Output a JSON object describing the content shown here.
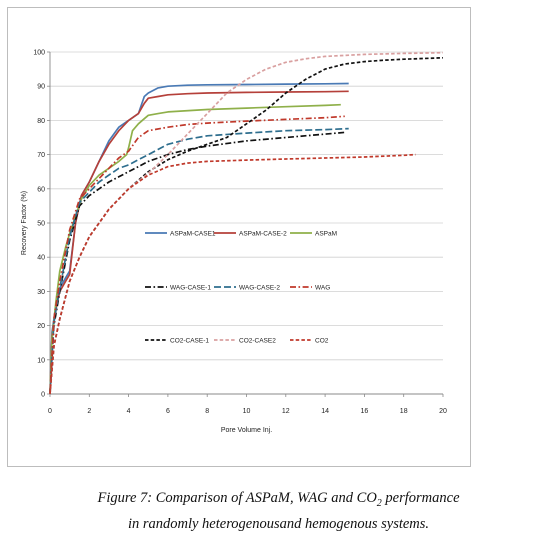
{
  "caption": {
    "prefix": "Figure 7: Comparison of ASPaM, WAG and CO",
    "sub": "2",
    "suffix": " performance",
    "line2": "in randomly heterogenousand hemogenous systems."
  },
  "chart_data": {
    "type": "line",
    "title": "",
    "xlabel": "Pore Volume Inj.",
    "ylabel": "Recovery Factor (%)",
    "xlim": [
      0,
      20
    ],
    "ylim": [
      0,
      100
    ],
    "xticks": [
      0,
      2,
      4,
      6,
      8,
      10,
      12,
      14,
      16,
      18,
      20
    ],
    "yticks": [
      0,
      10,
      20,
      30,
      40,
      50,
      60,
      70,
      80,
      90,
      100
    ],
    "grid": "horizontal",
    "series": [
      {
        "name": "ASPaM-CASE1",
        "color": "#4a7ab5",
        "dash": "solid",
        "x": [
          0,
          0.1,
          0.3,
          0.5,
          0.8,
          1.0,
          1.3,
          1.6,
          2.0,
          2.5,
          3.0,
          3.5,
          4.0,
          4.5,
          4.8,
          5.0,
          5.5,
          6.0,
          7.0,
          8.0,
          10.0,
          12.0,
          14.0,
          15.2
        ],
        "y": [
          0,
          18,
          26,
          31,
          34,
          36,
          50,
          58,
          62,
          68,
          74,
          78,
          80,
          82,
          87,
          88,
          89.5,
          90,
          90.3,
          90.4,
          90.5,
          90.6,
          90.7,
          90.8
        ]
      },
      {
        "name": "ASPaM-CASE-2",
        "color": "#b5403a",
        "dash": "solid",
        "x": [
          0,
          0.1,
          0.3,
          0.5,
          0.8,
          1.0,
          1.3,
          1.6,
          2.0,
          2.5,
          3.0,
          3.5,
          4.0,
          4.5,
          4.8,
          5.0,
          5.5,
          6.0,
          7.0,
          8.0,
          10.0,
          12.0,
          14.0,
          15.2
        ],
        "y": [
          0,
          17,
          25,
          30,
          33,
          35,
          50,
          58,
          62,
          68,
          73,
          77,
          80,
          82,
          85,
          86.5,
          87,
          87.5,
          87.8,
          88,
          88.2,
          88.3,
          88.4,
          88.5
        ]
      },
      {
        "name": "ASPaM",
        "color": "#8fb04a",
        "dash": "solid",
        "x": [
          0,
          0.1,
          0.3,
          0.5,
          0.8,
          1.0,
          1.3,
          1.6,
          2.0,
          2.5,
          3.0,
          3.5,
          3.9,
          4.0,
          4.2,
          4.5,
          4.8,
          5.0,
          5.5,
          6.0,
          8.0,
          10.0,
          12.0,
          14.0,
          14.8
        ],
        "y": [
          0,
          16,
          27,
          36,
          43,
          47,
          52,
          57,
          61,
          64,
          66,
          68,
          70,
          72,
          77,
          79,
          80.5,
          81.5,
          82,
          82.5,
          83.2,
          83.6,
          84,
          84.4,
          84.6
        ]
      },
      {
        "name": "WAG-CASE-1",
        "color": "#111111",
        "dash": "dashdot",
        "x": [
          0,
          0.2,
          0.5,
          1.0,
          1.5,
          2.0,
          2.5,
          3.0,
          3.5,
          4.0,
          4.5,
          5.0,
          6.0,
          7.0,
          8.0,
          10.0,
          12.0,
          14.0,
          15.0
        ],
        "y": [
          0,
          20,
          30,
          45,
          55,
          58,
          60,
          62,
          63.5,
          65,
          66.5,
          68,
          70,
          71.5,
          72.5,
          74,
          75,
          76,
          76.5
        ]
      },
      {
        "name": "WAG-CASE-2",
        "color": "#2e6e8e",
        "dash": "longdash",
        "x": [
          0,
          0.2,
          0.5,
          1.0,
          1.5,
          2.0,
          2.5,
          3.0,
          3.5,
          4.0,
          4.5,
          5.0,
          6.0,
          7.0,
          8.0,
          10.0,
          12.0,
          14.0,
          15.2
        ],
        "y": [
          0,
          21,
          31,
          46,
          56,
          59,
          62,
          64,
          66,
          67,
          68.5,
          70,
          73,
          74.5,
          75.5,
          76.3,
          77,
          77.3,
          77.6
        ]
      },
      {
        "name": "WAG",
        "color": "#c0392b",
        "dash": "dashdot",
        "x": [
          0,
          0.2,
          0.5,
          1.0,
          1.5,
          2.0,
          2.5,
          3.0,
          3.5,
          4.0,
          4.5,
          5.0,
          6.0,
          7.0,
          8.0,
          10.0,
          12.0,
          14.0,
          15.0
        ],
        "y": [
          0,
          22,
          33,
          48,
          57,
          60,
          63,
          66,
          69,
          71,
          75,
          77,
          78,
          78.8,
          79.2,
          79.8,
          80.3,
          80.8,
          81.2
        ]
      },
      {
        "name": "CO2-CASE-1",
        "color": "#111111",
        "dash": "shortdash",
        "x": [
          0,
          0.2,
          0.5,
          1.0,
          1.5,
          2.0,
          2.5,
          3.0,
          4.0,
          5.0,
          6.0,
          7.0,
          8.0,
          9.0,
          10.0,
          11.0,
          12.0,
          13.0,
          14.0,
          15.0,
          16.0,
          17.0,
          18.0,
          19.0,
          20.0
        ],
        "y": [
          0,
          14,
          22,
          33,
          40,
          46,
          50,
          54,
          60,
          65,
          68.5,
          71,
          73,
          75,
          79,
          83,
          88,
          92,
          95,
          96.5,
          97.2,
          97.6,
          97.9,
          98.1,
          98.3
        ]
      },
      {
        "name": "CO2-CASE2",
        "color": "#d9a0a0",
        "dash": "shortdash",
        "x": [
          0,
          0.2,
          0.5,
          1.0,
          1.5,
          2.0,
          2.5,
          3.0,
          4.0,
          5.0,
          6.0,
          7.0,
          8.0,
          9.0,
          10.0,
          11.0,
          12.0,
          13.0,
          14.0,
          15.0,
          16.0,
          18.0,
          20.0
        ],
        "y": [
          0,
          14,
          22,
          33,
          40,
          46,
          50,
          54,
          60,
          64.5,
          70,
          76,
          82,
          88,
          92,
          95,
          97,
          98,
          98.7,
          99,
          99.3,
          99.6,
          99.8
        ]
      },
      {
        "name": "CO2",
        "color": "#c0392b",
        "dash": "shortdash",
        "x": [
          0,
          0.2,
          0.5,
          1.0,
          1.5,
          2.0,
          2.5,
          3.0,
          4.0,
          5.0,
          6.0,
          7.0,
          8.0,
          10.0,
          12.0,
          14.0,
          16.0,
          18.0,
          18.6
        ],
        "y": [
          0,
          14,
          22,
          33,
          40,
          46,
          50,
          54,
          60,
          64,
          66.5,
          67.5,
          68,
          68.4,
          68.7,
          69,
          69.3,
          69.8,
          70
        ]
      }
    ]
  }
}
